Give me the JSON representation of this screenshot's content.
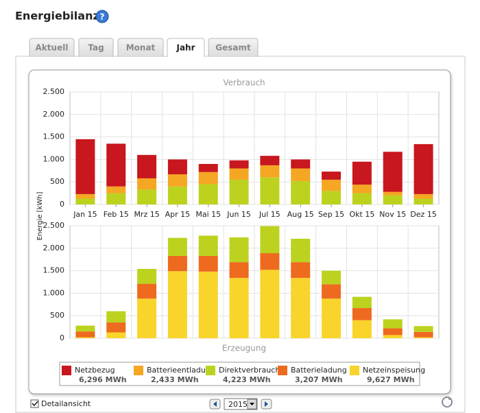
{
  "header": {
    "title": "Energiebilanz"
  },
  "tabs": [
    "Aktuell",
    "Tag",
    "Monat",
    "Jahr",
    "Gesamt"
  ],
  "active_tab": 3,
  "chart_data": [
    {
      "type": "bar",
      "stacked": true,
      "title": "Verbrauch",
      "ylabel": "Energie [kWh]",
      "categories": [
        "Jan 15",
        "Feb 15",
        "Mrz 15",
        "Apr 15",
        "Mai 15",
        "Jun 15",
        "Jul 15",
        "Aug 15",
        "Sep 15",
        "Okt 15",
        "Nov 15",
        "Dez 15"
      ],
      "series": [
        {
          "name": "Direktverbrauch",
          "color": "#bcd21e",
          "values": [
            130,
            250,
            330,
            400,
            450,
            550,
            600,
            520,
            300,
            250,
            200,
            130
          ]
        },
        {
          "name": "Batterieentladung",
          "color": "#f5a623",
          "values": [
            100,
            150,
            250,
            270,
            270,
            250,
            270,
            280,
            250,
            190,
            80,
            100
          ]
        },
        {
          "name": "Netzbezug",
          "color": "#c8171e",
          "values": [
            1220,
            950,
            520,
            330,
            180,
            180,
            210,
            200,
            180,
            510,
            890,
            1110
          ]
        }
      ],
      "ylim": [
        0,
        2500
      ],
      "yticks": [
        0,
        500,
        {
          "value": 1000,
          "label": "1.000"
        },
        {
          "value": 1500,
          "label": "1.500"
        },
        {
          "value": 2000,
          "label": "2.000"
        },
        {
          "value": 2500,
          "label": "2.500"
        }
      ],
      "grid": true
    },
    {
      "type": "bar",
      "stacked": true,
      "title": "Erzeugung",
      "series": [
        {
          "name": "Netzeinspeisung",
          "color": "#f9d42b",
          "values": [
            20,
            130,
            880,
            1490,
            1480,
            1340,
            1520,
            1340,
            880,
            400,
            70,
            20
          ]
        },
        {
          "name": "Batterieladung",
          "color": "#ee6a1f",
          "values": [
            130,
            220,
            330,
            340,
            350,
            350,
            370,
            350,
            320,
            270,
            150,
            120
          ]
        },
        {
          "name": "Direktverbrauch",
          "color": "#bcd21e",
          "values": [
            130,
            250,
            330,
            400,
            450,
            550,
            600,
            520,
            300,
            250,
            200,
            130
          ]
        }
      ],
      "ylim": [
        0,
        2500
      ],
      "yticks": [
        0,
        500,
        {
          "value": 1000,
          "label": "1.000"
        },
        {
          "value": 1500,
          "label": "1.500"
        },
        {
          "value": 2000,
          "label": "2.000"
        },
        {
          "value": 2500,
          "label": "2.500"
        }
      ],
      "grid": true
    }
  ],
  "legend": [
    {
      "name": "Netzbezug",
      "color": "#c8171e",
      "total": "6,296 MWh"
    },
    {
      "name": "Batterieentladung",
      "color": "#f5a623",
      "total": "2,433 MWh"
    },
    {
      "name": "Direktverbrauch",
      "color": "#bcd21e",
      "total": "4,223 MWh"
    },
    {
      "name": "Batterieladung",
      "color": "#ee6a1f",
      "total": "3,207 MWh"
    },
    {
      "name": "Netzeinspeisung",
      "color": "#f9d42b",
      "total": "9,627 MWh"
    }
  ],
  "footer": {
    "checkbox_label": "Detailansicht",
    "year": "2015"
  }
}
